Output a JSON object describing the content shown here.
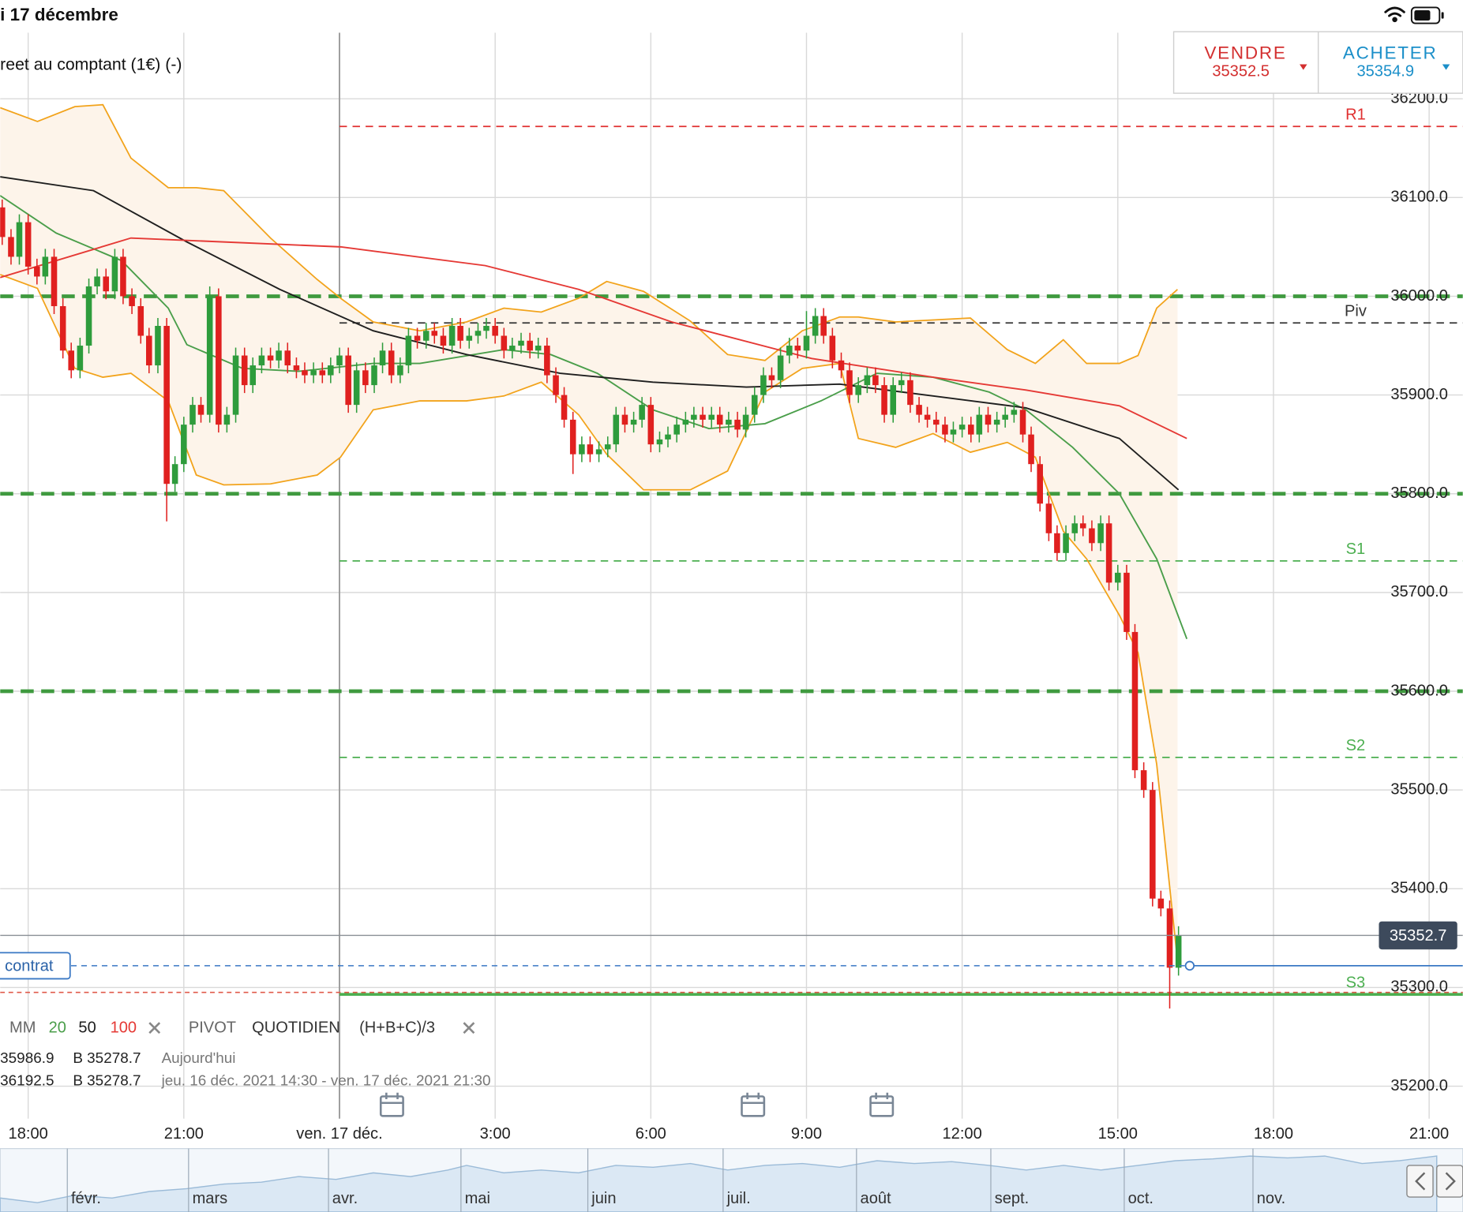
{
  "status_bar": {
    "date": "i 17 décembre"
  },
  "instrument": "reet au comptant (1€) (-)",
  "trade": {
    "sell_label": "VENDRE",
    "sell_price": "35352.5",
    "buy_label": "ACHETER",
    "buy_price": "35354.9"
  },
  "legend": {
    "ma_label": "MM",
    "pivot_label": "PIVOT",
    "pivot_period": "QUOTIDIEN",
    "pivot_formula": "(H+B+C)/3",
    "rows": [
      [
        "35986.9",
        "B 35278.7",
        "Aujourd'hui"
      ],
      [
        "36192.5",
        "B 35278.7",
        "jeu. 16 déc. 2021 14:30 - ven. 17 déc. 2021 21:30"
      ]
    ]
  },
  "navigator": {
    "months": [
      "févr.",
      "mars",
      "avr.",
      "mai",
      "juin",
      "juil.",
      "août",
      "sept.",
      "oct.",
      "nov."
    ]
  },
  "chart_data": {
    "type": "candlestick",
    "up_color": "#2e9c3c",
    "down_color": "#e0201f",
    "xlim": [
      17.46,
      45.65
    ],
    "xticks": [
      {
        "value": 18,
        "label": "18:00"
      },
      {
        "value": 21,
        "label": "21:00"
      },
      {
        "value": 24,
        "label": "ven. 17 déc."
      },
      {
        "value": 27,
        "label": "3:00"
      },
      {
        "value": 30,
        "label": "6:00"
      },
      {
        "value": 33,
        "label": "9:00"
      },
      {
        "value": 36,
        "label": "12:00"
      },
      {
        "value": 39,
        "label": "15:00"
      },
      {
        "value": 42,
        "label": "18:00"
      },
      {
        "value": 45,
        "label": "21:00"
      }
    ],
    "ylim": [
      35167,
      36267
    ],
    "yticks": [
      {
        "value": 35200,
        "label": "35200.0"
      },
      {
        "value": 35300,
        "label": "35300.0"
      },
      {
        "value": 35400,
        "label": "35400.0"
      },
      {
        "value": 35500,
        "label": "35500.0"
      },
      {
        "value": 35600,
        "label": "35600.0"
      },
      {
        "value": 35700,
        "label": "35700.0"
      },
      {
        "value": 35800,
        "label": "35800.0"
      },
      {
        "value": 35900,
        "label": "35900.0"
      },
      {
        "value": 36000,
        "label": "36000.0"
      },
      {
        "value": 36100,
        "label": "36100.0"
      },
      {
        "value": 36200,
        "label": "36200.0"
      }
    ],
    "grid": true,
    "x": [
      17.5,
      17.67,
      17.83,
      18,
      18.17,
      18.33,
      18.5,
      18.67,
      18.83,
      19,
      19.17,
      19.33,
      19.5,
      19.67,
      19.83,
      20,
      20.17,
      20.33,
      20.5,
      20.67,
      20.83,
      21,
      21.17,
      21.33,
      21.5,
      21.67,
      21.83,
      22,
      22.17,
      22.33,
      22.5,
      22.67,
      22.83,
      23,
      23.17,
      23.33,
      23.5,
      23.67,
      23.83,
      24,
      24.17,
      24.33,
      24.5,
      24.67,
      24.83,
      25,
      25.17,
      25.33,
      25.5,
      25.67,
      25.83,
      26,
      26.17,
      26.33,
      26.5,
      26.67,
      26.83,
      27,
      27.17,
      27.33,
      27.5,
      27.67,
      27.83,
      28,
      28.17,
      28.33,
      28.5,
      28.67,
      28.83,
      29,
      29.17,
      29.33,
      29.5,
      29.67,
      29.83,
      30,
      30.17,
      30.33,
      30.5,
      30.67,
      30.83,
      31,
      31.17,
      31.33,
      31.5,
      31.67,
      31.83,
      32,
      32.17,
      32.33,
      32.5,
      32.67,
      32.83,
      33,
      33.17,
      33.33,
      33.5,
      33.67,
      33.83,
      34,
      34.17,
      34.33,
      34.5,
      34.67,
      34.83,
      35,
      35.17,
      35.33,
      35.5,
      35.67,
      35.83,
      36,
      36.17,
      36.33,
      36.5,
      36.67,
      36.83,
      37,
      37.17,
      37.33,
      37.5,
      37.67,
      37.83,
      38,
      38.17,
      38.33,
      38.5,
      38.67,
      38.83,
      39,
      39.17,
      39.33,
      39.5,
      39.67,
      39.83,
      40,
      40.17
    ],
    "open": [
      36090,
      36060,
      36040,
      36075,
      36030,
      36020,
      36040,
      35990,
      35945,
      35925,
      35950,
      36010,
      36020,
      36005,
      36040,
      36000,
      35990,
      35960,
      35930,
      35970,
      35810,
      35830,
      35870,
      35890,
      35880,
      36000,
      35870,
      35880,
      35940,
      35910,
      35930,
      35940,
      35935,
      35945,
      35930,
      35925,
      35920,
      35925,
      35920,
      35930,
      35940,
      35890,
      35925,
      35910,
      35930,
      35945,
      35920,
      35930,
      35960,
      35955,
      35965,
      35960,
      35950,
      35970,
      35955,
      35960,
      35965,
      35970,
      35960,
      35945,
      35950,
      35955,
      35945,
      35950,
      35920,
      35900,
      35875,
      35840,
      35850,
      35840,
      35845,
      35850,
      35880,
      35870,
      35875,
      35890,
      35850,
      35855,
      35860,
      35870,
      35875,
      35880,
      35875,
      35880,
      35870,
      35875,
      35865,
      35880,
      35900,
      35920,
      35915,
      35940,
      35950,
      35945,
      35960,
      35980,
      35960,
      35935,
      35925,
      35900,
      35910,
      35920,
      35910,
      35880,
      35910,
      35915,
      35890,
      35880,
      35875,
      35870,
      35860,
      35865,
      35870,
      35860,
      35880,
      35870,
      35875,
      35880,
      35885,
      35860,
      35830,
      35790,
      35760,
      35740,
      35760,
      35770,
      35765,
      35750,
      35770,
      35710,
      35720,
      35660,
      35520,
      35500,
      35390,
      35380,
      35320
    ],
    "high": [
      36098,
      36068,
      36083,
      36083,
      36038,
      36048,
      36048,
      35998,
      35953,
      35958,
      36018,
      36028,
      36028,
      36048,
      36048,
      36008,
      35998,
      35968,
      35978,
      35978,
      35838,
      35878,
      35898,
      35898,
      36010,
      36008,
      35888,
      35948,
      35948,
      35938,
      35948,
      35948,
      35953,
      35953,
      35938,
      35933,
      35933,
      35933,
      35938,
      35948,
      35948,
      35933,
      35933,
      35938,
      35953,
      35953,
      35938,
      35968,
      35968,
      35973,
      35973,
      35968,
      35978,
      35978,
      35968,
      35973,
      35978,
      35978,
      35968,
      35958,
      35963,
      35963,
      35958,
      35958,
      35928,
      35908,
      35883,
      35858,
      35858,
      35853,
      35858,
      35888,
      35888,
      35883,
      35898,
      35898,
      35863,
      35868,
      35878,
      35883,
      35888,
      35888,
      35888,
      35888,
      35883,
      35883,
      35888,
      35908,
      35928,
      35928,
      35948,
      35958,
      35958,
      35985,
      35988,
      35988,
      35968,
      35943,
      35933,
      35918,
      35928,
      35928,
      35918,
      35918,
      35923,
      35923,
      35898,
      35888,
      35883,
      35878,
      35873,
      35878,
      35878,
      35888,
      35888,
      35883,
      35888,
      35893,
      35893,
      35868,
      35838,
      35798,
      35768,
      35768,
      35778,
      35778,
      35773,
      35778,
      35778,
      35728,
      35728,
      35668,
      35528,
      35508,
      35398,
      35388,
      35362
    ],
    "low": [
      36052,
      36032,
      36032,
      36022,
      36012,
      36012,
      35982,
      35937,
      35917,
      35917,
      35942,
      36002,
      35997,
      35997,
      35992,
      35982,
      35952,
      35922,
      35922,
      35772,
      35802,
      35822,
      35862,
      35872,
      35872,
      35862,
      35862,
      35872,
      35902,
      35902,
      35922,
      35927,
      35927,
      35922,
      35917,
      35912,
      35912,
      35912,
      35912,
      35922,
      35882,
      35882,
      35902,
      35902,
      35922,
      35912,
      35912,
      35922,
      35947,
      35947,
      35952,
      35942,
      35942,
      35947,
      35947,
      35952,
      35957,
      35952,
      35937,
      35937,
      35942,
      35937,
      35937,
      35912,
      35892,
      35867,
      35820,
      35832,
      35832,
      35832,
      35837,
      35842,
      35862,
      35862,
      35867,
      35842,
      35842,
      35847,
      35852,
      35862,
      35867,
      35867,
      35867,
      35862,
      35862,
      35857,
      35857,
      35872,
      35892,
      35907,
      35907,
      35932,
      35937,
      35937,
      35952,
      35952,
      35927,
      35917,
      35892,
      35892,
      35902,
      35902,
      35872,
      35872,
      35902,
      35882,
      35872,
      35867,
      35862,
      35852,
      35852,
      35857,
      35852,
      35852,
      35862,
      35862,
      35867,
      35872,
      35852,
      35822,
      35782,
      35752,
      35732,
      35732,
      35752,
      35757,
      35742,
      35742,
      35702,
      35702,
      35652,
      35512,
      35492,
      35382,
      35372,
      35278.7,
      35312
    ],
    "close": [
      36060,
      36040,
      36075,
      36030,
      36020,
      36040,
      35990,
      35945,
      35925,
      35950,
      36010,
      36020,
      36005,
      36040,
      36000,
      35990,
      35960,
      35930,
      35970,
      35810,
      35830,
      35870,
      35890,
      35880,
      36000,
      35870,
      35880,
      35940,
      35910,
      35930,
      35940,
      35935,
      35945,
      35930,
      35925,
      35920,
      35925,
      35920,
      35930,
      35940,
      35890,
      35925,
      35910,
      35930,
      35945,
      35920,
      35930,
      35960,
      35955,
      35965,
      35960,
      35950,
      35970,
      35955,
      35960,
      35965,
      35970,
      35960,
      35945,
      35950,
      35955,
      35945,
      35950,
      35920,
      35900,
      35875,
      35840,
      35850,
      35840,
      35845,
      35850,
      35880,
      35870,
      35875,
      35890,
      35850,
      35855,
      35860,
      35870,
      35875,
      35880,
      35875,
      35880,
      35870,
      35875,
      35865,
      35880,
      35900,
      35920,
      35915,
      35940,
      35950,
      35945,
      35960,
      35980,
      35960,
      35935,
      35925,
      35900,
      35910,
      35920,
      35910,
      35880,
      35910,
      35915,
      35890,
      35880,
      35875,
      35870,
      35860,
      35865,
      35870,
      35860,
      35880,
      35870,
      35875,
      35880,
      35885,
      35860,
      35830,
      35790,
      35760,
      35740,
      35760,
      35770,
      35765,
      35750,
      35770,
      35710,
      35720,
      35660,
      35520,
      35500,
      35390,
      35380,
      35320,
      35352.7
    ],
    "bollinger": {
      "color": "#f2a31b",
      "fill": "#fdf4ea",
      "x": [
        17.46,
        18.18,
        18.9,
        19.44,
        19.98,
        20.7,
        21.24,
        21.77,
        22.67,
        23.57,
        24.02,
        24.65,
        25.55,
        26.45,
        27.17,
        27.89,
        28.61,
        29.15,
        29.86,
        30.76,
        31.48,
        32.2,
        32.92,
        33.64,
        34,
        34.72,
        35.44,
        36.16,
        36.87,
        37.41,
        37.95,
        38.4,
        39.03,
        39.39,
        39.75,
        40.15
      ],
      "upper": [
        36191,
        36177,
        36192,
        36194,
        36140,
        36110,
        36110,
        36107,
        36059,
        36017,
        35998,
        35974,
        35965,
        35974,
        35988,
        35984,
        35998,
        36015,
        36005,
        35975,
        35941,
        35935,
        35965,
        35979,
        35979,
        35974,
        35976,
        35978,
        35946,
        35932,
        35956,
        35932,
        35932,
        35940,
        35988,
        36007
      ],
      "lower": [
        36022,
        36008,
        35927,
        35918,
        35922,
        35894,
        35819,
        35809,
        35810,
        35819,
        35837,
        35885,
        35894,
        35894,
        35899,
        35913,
        35880,
        35840,
        35804,
        35804,
        35823,
        35903,
        35927,
        35932,
        35856,
        35847,
        35861,
        35842,
        35852,
        35837,
        35762,
        35734,
        35677,
        35639,
        35526,
        35327
      ]
    },
    "indicators": [
      {
        "name": "20",
        "color": "#4a9e4a",
        "x": [
          17.46,
          18.54,
          19.8,
          20.7,
          21.06,
          22.13,
          23.21,
          24.65,
          25.55,
          27.17,
          28.07,
          28.97,
          30.04,
          31.12,
          32.2,
          33.28,
          34.36,
          35.44,
          36.52,
          37.23,
          38.13,
          39.03,
          39.75,
          40.33
        ],
        "values": [
          36102,
          36064,
          36036,
          35988,
          35951,
          35927,
          35924,
          35932,
          35932,
          35946,
          35941,
          35922,
          35885,
          35866,
          35871,
          35894,
          35922,
          35918,
          35903,
          35885,
          35847,
          35800,
          35734,
          35653
        ]
      },
      {
        "name": "50",
        "color": "#1f1f1f",
        "x": [
          17.46,
          19.26,
          21.06,
          22.85,
          24.65,
          26.45,
          28.25,
          30.04,
          31.84,
          33.64,
          35.44,
          37.23,
          39.03,
          40.17
        ],
        "values": [
          36121,
          36107,
          36055,
          36007,
          35965,
          35941,
          35922,
          35913,
          35908,
          35911,
          35899,
          35887,
          35856,
          35804
        ]
      },
      {
        "name": "100",
        "color": "#e53935",
        "x": [
          17.46,
          19.98,
          24.02,
          26.81,
          28.61,
          30.4,
          33.1,
          35.44,
          37.23,
          39.03,
          40.33
        ],
        "values": [
          36019,
          36059,
          36050,
          36031,
          36007,
          35974,
          35937,
          35918,
          35905,
          35889,
          35856
        ]
      }
    ],
    "pivot_start": 24,
    "pivots": [
      {
        "name": "R1",
        "value": 36172,
        "color": "#e03030",
        "dashed": true
      },
      {
        "name": "Piv",
        "value": 35973,
        "color": "#333333",
        "dashed": true
      },
      {
        "name": "S1",
        "value": 35732,
        "color": "#4caf50",
        "dashed": true
      },
      {
        "name": "S2",
        "value": 35533,
        "color": "#4caf50",
        "dashed": true
      },
      {
        "name": "S3",
        "value": 35293,
        "color": "#4caf50",
        "dashed": false
      }
    ],
    "levels": [
      36000,
      35800,
      35600
    ],
    "level_color": "#3f9a3f",
    "order_level": 35295,
    "position": {
      "label": "contrat",
      "value": 35322
    },
    "last_price": 35352.7
  }
}
